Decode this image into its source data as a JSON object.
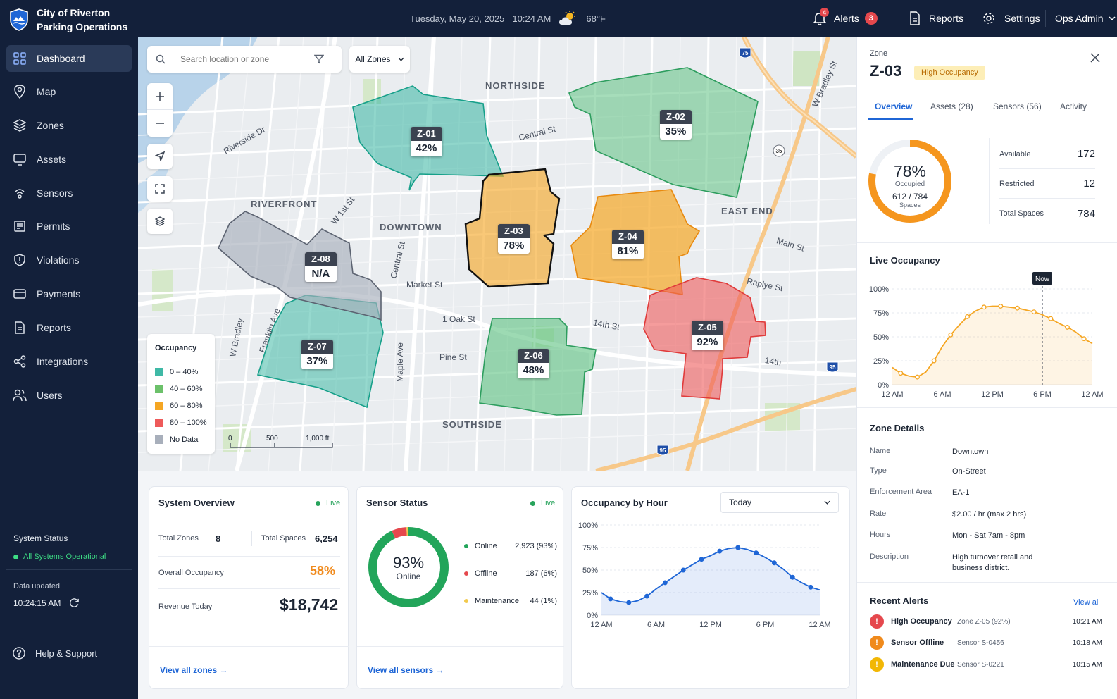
{
  "header": {
    "org": "City of Riverton",
    "app": "Parking Operations",
    "date": "Tuesday, May 20, 2025",
    "time": "10:24 AM",
    "temperature": "68°F",
    "weather_icon": "partly-cloudy-icon",
    "alerts_label": "Alerts",
    "alerts_count": "3",
    "bell_badge": "4",
    "reports_label": "Reports",
    "settings_label": "Settings",
    "user_label": "Ops Admin"
  },
  "sidebar": {
    "items": [
      {
        "label": "Dashboard",
        "icon": "grid-icon",
        "active": true
      },
      {
        "label": "Map",
        "icon": "map-pin-icon"
      },
      {
        "label": "Zones",
        "icon": "layers-icon"
      },
      {
        "label": "Assets",
        "icon": "monitor-icon"
      },
      {
        "label": "Sensors",
        "icon": "sensor-icon"
      },
      {
        "label": "Permits",
        "icon": "permit-icon"
      },
      {
        "label": "Violations",
        "icon": "shield-icon"
      },
      {
        "label": "Payments",
        "icon": "card-icon"
      },
      {
        "label": "Reports",
        "icon": "document-icon"
      },
      {
        "label": "Integrations",
        "icon": "share-icon"
      },
      {
        "label": "Users",
        "icon": "users-icon"
      }
    ],
    "status_title": "System Status",
    "status_text": "All Systems Operational",
    "updated_label": "Data updated",
    "updated_time": "10:24:15 AM",
    "help_label": "Help & Support"
  },
  "map": {
    "search_placeholder": "Search location or zone",
    "zone_filter": "All Zones",
    "districts": [
      "NORTHSIDE",
      "RIVERFRONT",
      "DOWNTOWN",
      "EAST END",
      "SOUTHSIDE"
    ],
    "streets": [
      "Riverside Dr",
      "Central St",
      "W 1st St",
      "Market St",
      "1 Oak St",
      "Pine St",
      "14th St",
      "Maple Ave",
      "Main St",
      "Raplye St",
      "Central St",
      "W Bradley",
      "Franklin Ave",
      "W Bradley St",
      "14th"
    ],
    "highways": [
      "75",
      "35",
      "95",
      "95"
    ],
    "zones": [
      {
        "id": "Z-01",
        "pct": "42%"
      },
      {
        "id": "Z-02",
        "pct": "35%"
      },
      {
        "id": "Z-03",
        "pct": "78%"
      },
      {
        "id": "Z-04",
        "pct": "81%"
      },
      {
        "id": "Z-05",
        "pct": "92%"
      },
      {
        "id": "Z-06",
        "pct": "48%"
      },
      {
        "id": "Z-07",
        "pct": "37%"
      },
      {
        "id": "Z-08",
        "pct": "N/A"
      }
    ],
    "legend": {
      "title": "Occupancy",
      "items": [
        {
          "label": "0 – 40%",
          "color": "#3fb9a6"
        },
        {
          "label": "40 – 60%",
          "color": "#6cc16a"
        },
        {
          "label": "60 – 80%",
          "color": "#f5a623"
        },
        {
          "label": "80 – 100%",
          "color": "#ee5a5a"
        },
        {
          "label": "No Data",
          "color": "#a8afbb"
        }
      ]
    },
    "scale": [
      "0",
      "500",
      "1,000 ft"
    ]
  },
  "system_overview": {
    "title": "System Overview",
    "live": "Live",
    "total_zones_label": "Total Zones",
    "total_zones": "8",
    "total_spaces_label": "Total Spaces",
    "total_spaces": "6,254",
    "occupancy_label": "Overall Occupancy",
    "occupancy": "58%",
    "revenue_label": "Revenue Today",
    "revenue": "$18,742",
    "link": "View all zones"
  },
  "sensor_status": {
    "title": "Sensor Status",
    "live": "Live",
    "pct": "93%",
    "pct_label": "Online",
    "online_fraction": 0.93,
    "offline_fraction": 0.06,
    "maintenance_fraction": 0.01,
    "rows": [
      {
        "label": "Online",
        "value": "2,923 (93%)",
        "color": "#22a55a"
      },
      {
        "label": "Offline",
        "value": "187 (6%)",
        "color": "#e5484d"
      },
      {
        "label": "Maintenance",
        "value": "44 (1%)",
        "color": "#f2c94c"
      }
    ],
    "link": "View all sensors"
  },
  "occupancy_by_hour": {
    "title": "Occupancy by Hour",
    "period": "Today"
  },
  "zone_panel": {
    "label": "Zone",
    "zone_id": "Z-03",
    "badge": "High Occupancy",
    "tabs": [
      "Overview",
      "Assets (28)",
      "Sensors (56)",
      "Activity"
    ],
    "occupied_pct": "78%",
    "occupied_label": "Occupied",
    "occupied_fraction": 0.78,
    "spaces_ratio": "612 / 784",
    "spaces_label": "Spaces",
    "stats": [
      {
        "label": "Available",
        "value": "172"
      },
      {
        "label": "Restricted",
        "value": "12"
      },
      {
        "label": "Total Spaces",
        "value": "784"
      }
    ],
    "live_title": "Live Occupancy",
    "now_label": "Now",
    "details_title": "Zone Details",
    "details": [
      {
        "label": "Name",
        "value": "Downtown"
      },
      {
        "label": "Type",
        "value": "On-Street"
      },
      {
        "label": "Enforcement Area",
        "value": "EA-1"
      },
      {
        "label": "Rate",
        "value": "$2.00 / hr (max 2 hrs)"
      },
      {
        "label": "Hours",
        "value": "Mon - Sat 7am - 8pm"
      },
      {
        "label": "Description",
        "value": "High turnover retail and business district."
      }
    ],
    "alerts_title": "Recent Alerts",
    "alerts_link": "View all",
    "alerts": [
      {
        "title": "High Occupancy",
        "detail": "Zone Z-05 (92%)",
        "time": "10:21 AM",
        "color": "#e5484d"
      },
      {
        "title": "Sensor Offline",
        "detail": "Sensor S-0456",
        "time": "10:18 AM",
        "color": "#f08a1c"
      },
      {
        "title": "Maintenance Due",
        "detail": "Sensor S-0221",
        "time": "10:15 AM",
        "color": "#f2b705"
      }
    ]
  },
  "chart_data": [
    {
      "type": "area",
      "title": "Live Occupancy",
      "x": [
        0,
        1,
        2,
        3,
        4,
        5,
        6,
        7,
        8,
        9,
        10,
        11,
        12,
        13,
        14,
        15,
        16,
        17,
        18,
        19,
        20,
        21,
        22,
        23,
        24
      ],
      "x_tick_labels": [
        "12 AM",
        "6 AM",
        "12 PM",
        "6 PM",
        "12 AM"
      ],
      "y": [
        18,
        12,
        9,
        8,
        13,
        25,
        40,
        52,
        62,
        71,
        77,
        81,
        82,
        82,
        81,
        80,
        78,
        76,
        73,
        69,
        64,
        60,
        55,
        48,
        43
      ],
      "y_ticks": [
        "0%",
        "25%",
        "50%",
        "75%",
        "100%"
      ],
      "ylim": [
        0,
        100
      ],
      "now_x": 18,
      "color": "#f5a623"
    },
    {
      "type": "area",
      "title": "Occupancy by Hour",
      "x": [
        0,
        1,
        2,
        3,
        4,
        5,
        6,
        7,
        8,
        9,
        10,
        11,
        12,
        13,
        14,
        15,
        16,
        17,
        18,
        19,
        20,
        21,
        22,
        23,
        24
      ],
      "x_tick_labels": [
        "12 AM",
        "6 AM",
        "12 PM",
        "6 PM",
        "12 AM"
      ],
      "y": [
        25,
        18,
        15,
        14,
        16,
        21,
        29,
        36,
        43,
        50,
        56,
        62,
        66,
        71,
        74,
        75,
        73,
        69,
        64,
        58,
        51,
        42,
        36,
        31,
        28
      ],
      "y_ticks": [
        "0%",
        "25%",
        "50%",
        "75%",
        "100%"
      ],
      "ylim": [
        0,
        100
      ],
      "color": "#1f66d6"
    }
  ]
}
